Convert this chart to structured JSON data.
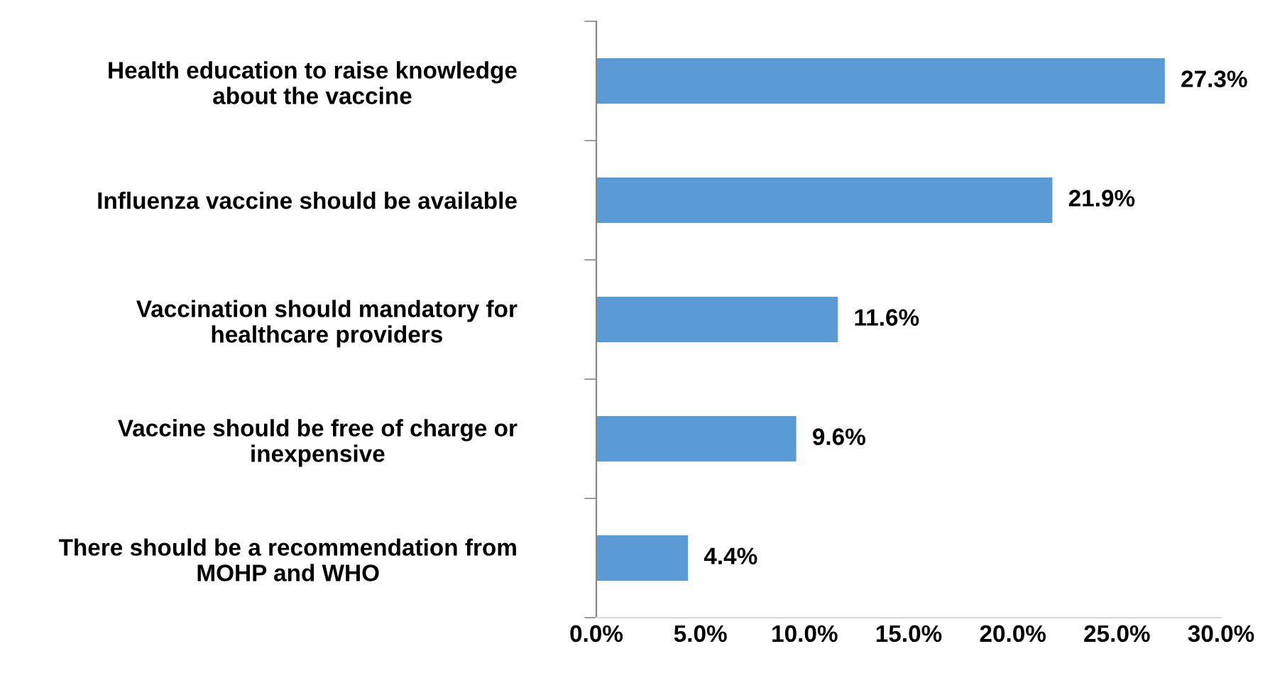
{
  "chart_data": {
    "type": "bar",
    "orientation": "horizontal",
    "categories": [
      "Health education to raise knowledge\nabout the vaccine",
      "Influenza vaccine should be available",
      "Vaccination should mandatory for\nhealthcare providers",
      "Vaccine should be free of charge or\ninexpensive",
      "There should be a recommendation from\nMOHP and WHO"
    ],
    "values": [
      27.3,
      21.9,
      11.6,
      9.6,
      4.4
    ],
    "value_labels": [
      "27.3%",
      "21.9%",
      "11.6%",
      "9.6%",
      "4.4%"
    ],
    "color": "#5b9bd5",
    "xlim": [
      0,
      30
    ],
    "xticks": [
      {
        "value": 0,
        "label": "0.0%"
      },
      {
        "value": 5,
        "label": "5.0%"
      },
      {
        "value": 10,
        "label": "10.0%"
      },
      {
        "value": 15,
        "label": "15.0%"
      },
      {
        "value": 20,
        "label": "20.0%"
      },
      {
        "value": 25,
        "label": "25.0%"
      },
      {
        "value": 30,
        "label": "30.0%"
      }
    ],
    "grid": false,
    "legend": false
  }
}
